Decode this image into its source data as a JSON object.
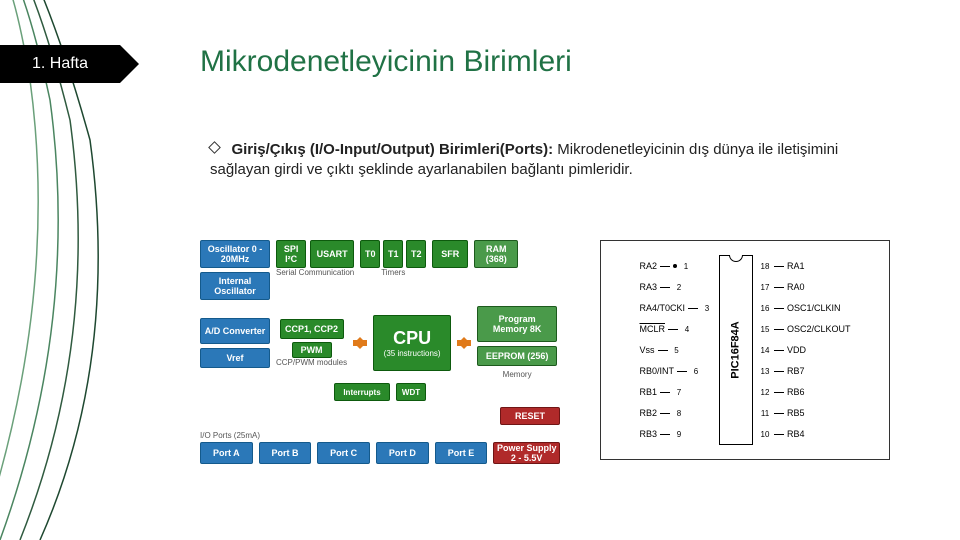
{
  "header": {
    "tab": "1. Hafta",
    "title": "Mikrodenetleyicinin Birimleri"
  },
  "bullet": {
    "bold": "Giriş/Çıkış (I/O-Input/Output) Birimleri(Ports):",
    "rest": " Mikrodenetleyicinin dış dünya ile iletişimini sağlayan girdi ve çıktı şeklinde ayarlanabilen bağlantı pimleridir."
  },
  "curves": {
    "stroke": "#2f5a3f",
    "strokes": [
      "#6aa07a",
      "#4a8560",
      "#2f5a3f",
      "#1e4830"
    ]
  },
  "blockdiagram": {
    "top_left": [
      "Oscillator 0 - 20MHz",
      "Internal Oscillator"
    ],
    "serial": [
      "SPI I²C",
      "USART"
    ],
    "serial_label": "Serial Communication",
    "timers": [
      "T0",
      "T1",
      "T2"
    ],
    "timers_label": "Timers",
    "sfr": "SFR",
    "ram": "RAM (368)",
    "ad": "A/D Converter",
    "vref": "Vref",
    "ccp": "CCP1, CCP2",
    "pwm": "PWM",
    "ccp_label": "CCP/PWM modules",
    "cpu": "CPU",
    "cpu_sub": "(35 instructions)",
    "interrupts": "Interrupts",
    "wdt": "WDT",
    "progmem": "Program Memory 8K",
    "eeprom": "EEPROM (256)",
    "mem_label": "Memory",
    "reset": "RESET",
    "power": "Power Supply 2 - 5.5V",
    "io_label": "I/O Ports (25mA)",
    "ports": [
      "Port A",
      "Port B",
      "Port C",
      "Port D",
      "Port E"
    ]
  },
  "pinout": {
    "chip": "PIC16F84A",
    "left": [
      {
        "lbl": "RA2",
        "n": "1"
      },
      {
        "lbl": "RA3",
        "n": "2"
      },
      {
        "lbl": "RA4/T0CKI",
        "n": "3"
      },
      {
        "lbl": "MCLR",
        "over": true,
        "n": "4"
      },
      {
        "lbl": "Vss",
        "n": "5"
      },
      {
        "lbl": "RB0/INT",
        "n": "6"
      },
      {
        "lbl": "RB1",
        "n": "7"
      },
      {
        "lbl": "RB2",
        "n": "8"
      },
      {
        "lbl": "RB3",
        "n": "9"
      }
    ],
    "right": [
      {
        "lbl": "RA1",
        "n": "18"
      },
      {
        "lbl": "RA0",
        "n": "17"
      },
      {
        "lbl": "OSC1/CLKIN",
        "n": "16"
      },
      {
        "lbl": "OSC2/CLKOUT",
        "n": "15"
      },
      {
        "lbl": "VDD",
        "n": "14"
      },
      {
        "lbl": "RB7",
        "n": "13"
      },
      {
        "lbl": "RB6",
        "n": "12"
      },
      {
        "lbl": "RB5",
        "n": "11"
      },
      {
        "lbl": "RB4",
        "n": "10"
      }
    ]
  }
}
